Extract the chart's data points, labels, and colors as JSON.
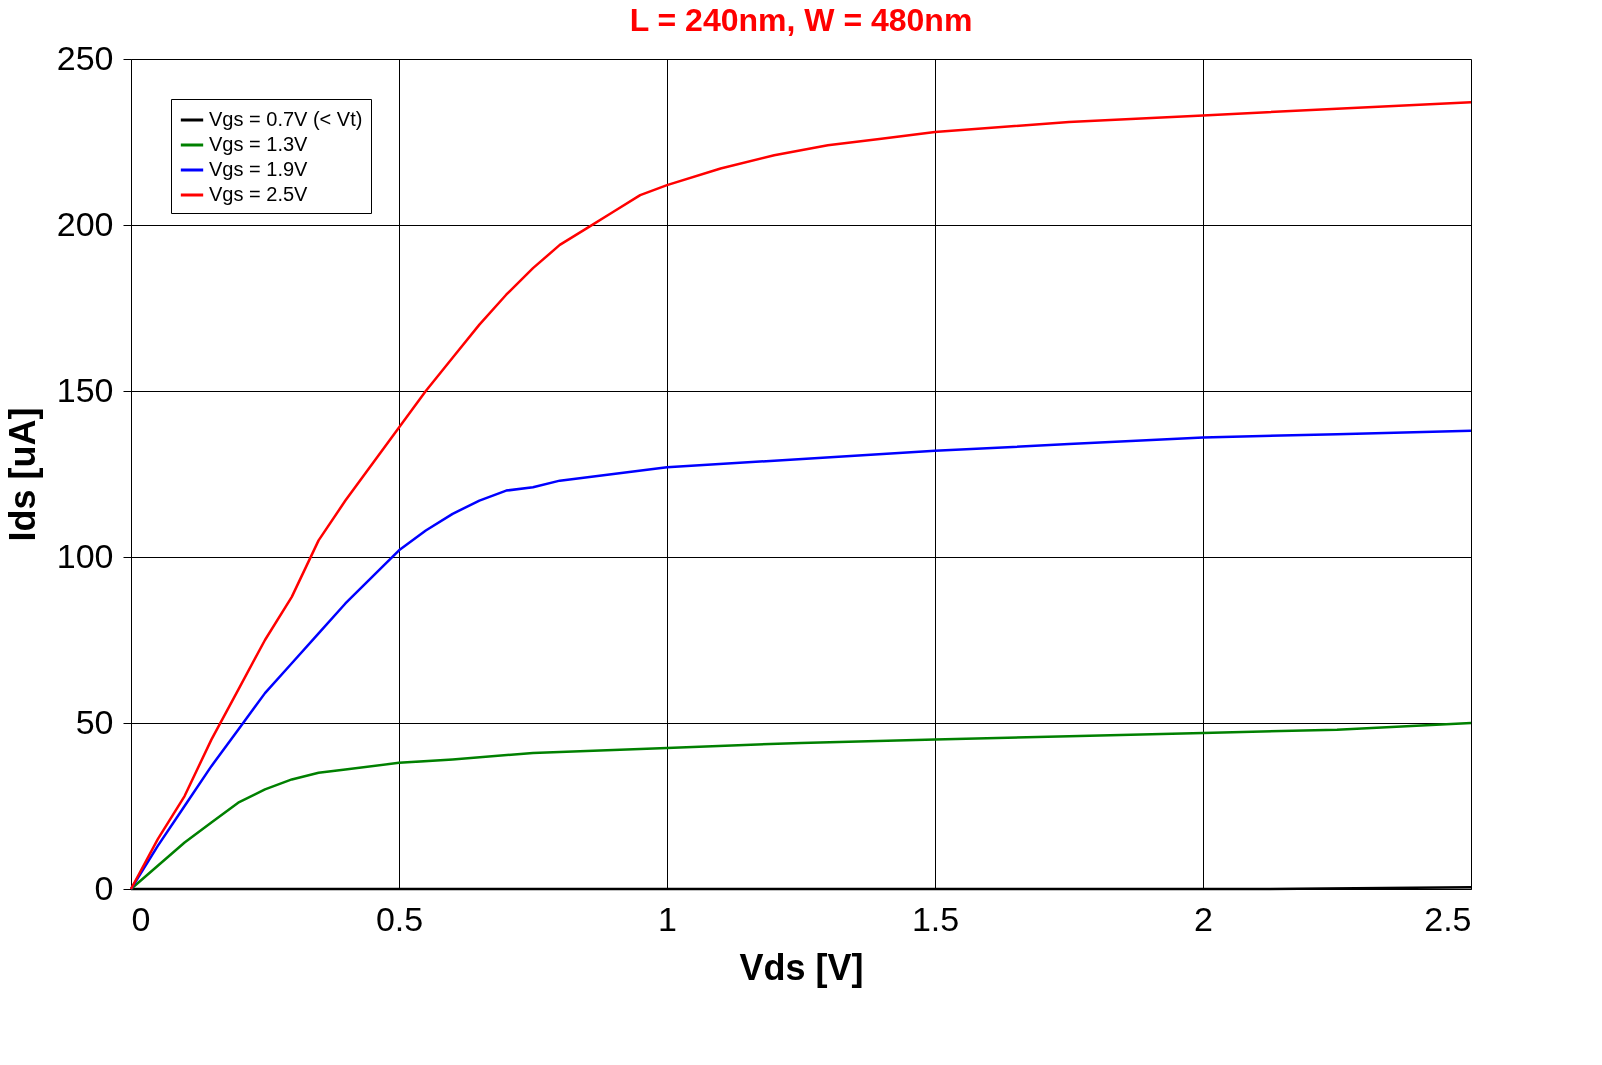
{
  "chart_data": {
    "type": "line",
    "title": "L = 240nm, W = 480nm",
    "xlabel": "Vds [V]",
    "ylabel": "Ids [uA]",
    "xlim": [
      0,
      2.5
    ],
    "xticks": [
      0,
      0.5,
      1,
      1.5,
      2,
      2.5
    ],
    "ylim": [
      0,
      250
    ],
    "yticks": [
      0,
      50,
      100,
      150,
      200,
      250
    ],
    "grid": true,
    "legend": "top left",
    "marker": "none",
    "line_style": "solid",
    "series": [
      {
        "name": "Vgs = 0.7V (< Vt)",
        "color": "#000000",
        "x": [
          0,
          2.12,
          2.5
        ],
        "values": [
          0,
          0,
          0.5
        ]
      },
      {
        "name": "Vgs = 1.3V",
        "color": "#008000",
        "x": [
          0,
          0.05,
          0.1,
          0.15,
          0.2,
          0.25,
          0.3,
          0.35,
          0.4,
          0.5,
          0.6,
          0.75,
          1.0,
          1.25,
          1.5,
          1.75,
          2.0,
          2.25,
          2.5
        ],
        "values": [
          0,
          7,
          14,
          20,
          26,
          30,
          33,
          35,
          36,
          38,
          39,
          41,
          42.5,
          44,
          45,
          46,
          47,
          48,
          50
        ]
      },
      {
        "name": "Vgs = 1.9V",
        "color": "#0000ff",
        "x": [
          0,
          0.05,
          0.1,
          0.15,
          0.2,
          0.25,
          0.3,
          0.35,
          0.4,
          0.45,
          0.5,
          0.55,
          0.6,
          0.65,
          0.7,
          0.75,
          0.8,
          0.9,
          1.0,
          1.2,
          1.5,
          1.75,
          2.0,
          2.25,
          2.5
        ],
        "values": [
          0,
          13,
          25,
          37,
          48,
          59,
          68,
          77,
          86,
          94,
          102,
          108,
          113,
          117,
          120,
          121,
          123,
          125,
          127,
          129,
          132,
          134,
          136,
          137,
          138
        ]
      },
      {
        "name": "Vgs = 2.5V",
        "color": "#ff0000",
        "x": [
          0,
          0.05,
          0.1,
          0.15,
          0.2,
          0.25,
          0.3,
          0.35,
          0.4,
          0.45,
          0.5,
          0.55,
          0.6,
          0.65,
          0.7,
          0.75,
          0.8,
          0.85,
          0.9,
          0.95,
          1.0,
          1.1,
          1.2,
          1.3,
          1.4,
          1.5,
          1.75,
          2.0,
          2.25,
          2.5
        ],
        "values": [
          0,
          15,
          28,
          45,
          60,
          75,
          88,
          105,
          117,
          128,
          139,
          150,
          160,
          170,
          179,
          187,
          194,
          199,
          204,
          209,
          212,
          217,
          221,
          224,
          226,
          228,
          231,
          233,
          235,
          237
        ]
      }
    ]
  }
}
